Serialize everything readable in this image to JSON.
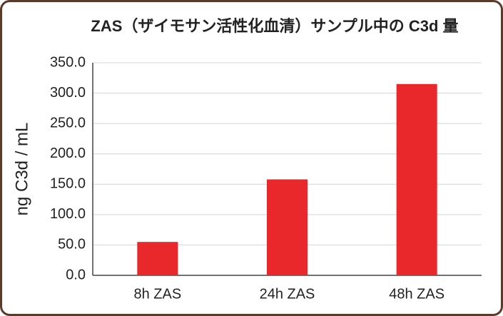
{
  "chart_data": {
    "type": "bar",
    "title": "ZAS（ザイモサン活性化血清）サンプル中の C3d 量",
    "y_label": "ng C3d / mL",
    "categories": [
      "8h ZAS",
      "24h ZAS",
      "48h ZAS"
    ],
    "values": [
      55,
      158,
      315
    ],
    "color": "#e8282b",
    "ylim": [
      0,
      350
    ],
    "yticks": [
      {
        "value": 0,
        "label": "0.0"
      },
      {
        "value": 50,
        "label": "50.0"
      },
      {
        "value": 100,
        "label": "100.0"
      },
      {
        "value": 150,
        "label": "150.0"
      },
      {
        "value": 200,
        "label": "200.0"
      },
      {
        "value": 250,
        "label": "250.0"
      },
      {
        "value": 300,
        "label": "300.0"
      },
      {
        "value": 350,
        "label": "350.0"
      }
    ],
    "grid": true
  }
}
